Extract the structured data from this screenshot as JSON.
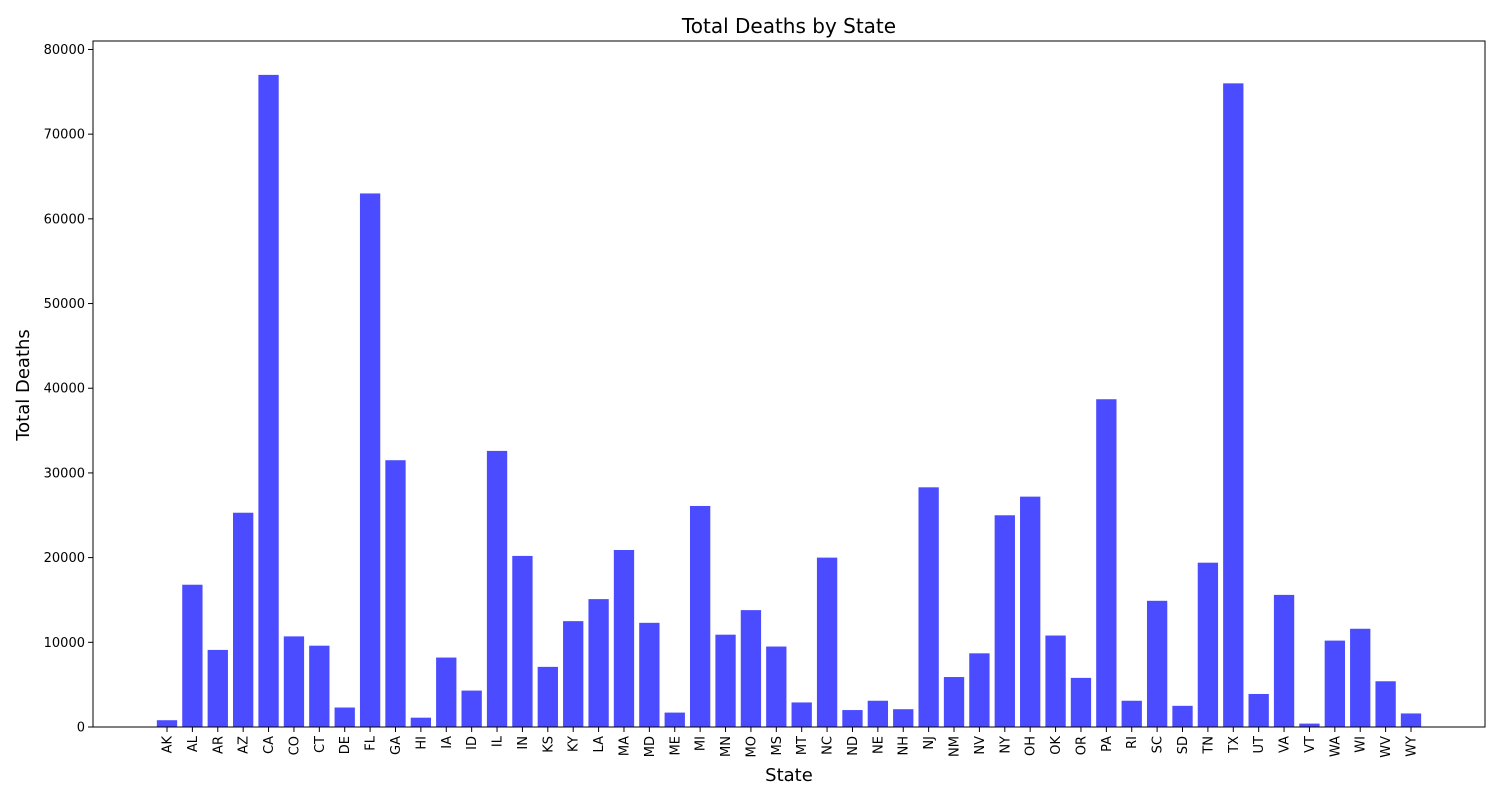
{
  "chart_data": {
    "type": "bar",
    "title": "Total Deaths by State",
    "xlabel": "State",
    "ylabel": "Total Deaths",
    "ylim": [
      0,
      81000
    ],
    "yticks": [
      0,
      10000,
      20000,
      30000,
      40000,
      50000,
      60000,
      70000,
      80000
    ],
    "grid": false,
    "bar_color": "#4b4bff",
    "categories": [
      "AK",
      "AL",
      "AR",
      "AZ",
      "CA",
      "CO",
      "CT",
      "DE",
      "FL",
      "GA",
      "HI",
      "IA",
      "ID",
      "IL",
      "IN",
      "KS",
      "KY",
      "LA",
      "MA",
      "MD",
      "ME",
      "MI",
      "MN",
      "MO",
      "MS",
      "MT",
      "NC",
      "ND",
      "NE",
      "NH",
      "NJ",
      "NM",
      "NV",
      "NY",
      "OH",
      "OK",
      "OR",
      "PA",
      "RI",
      "SC",
      "SD",
      "TN",
      "TX",
      "UT",
      "VA",
      "VT",
      "WA",
      "WI",
      "WV",
      "WY"
    ],
    "values": [
      800,
      16800,
      9100,
      25300,
      77000,
      10700,
      9600,
      2300,
      63000,
      31500,
      1100,
      8200,
      4300,
      32600,
      20200,
      7100,
      12500,
      15100,
      20900,
      12300,
      1700,
      26100,
      10900,
      13800,
      9500,
      2900,
      20000,
      2000,
      3100,
      2100,
      28300,
      5900,
      8700,
      25000,
      27200,
      10800,
      5800,
      38700,
      3100,
      14900,
      2500,
      19400,
      76000,
      3900,
      15600,
      400,
      10200,
      11600,
      5400,
      1600
    ]
  }
}
